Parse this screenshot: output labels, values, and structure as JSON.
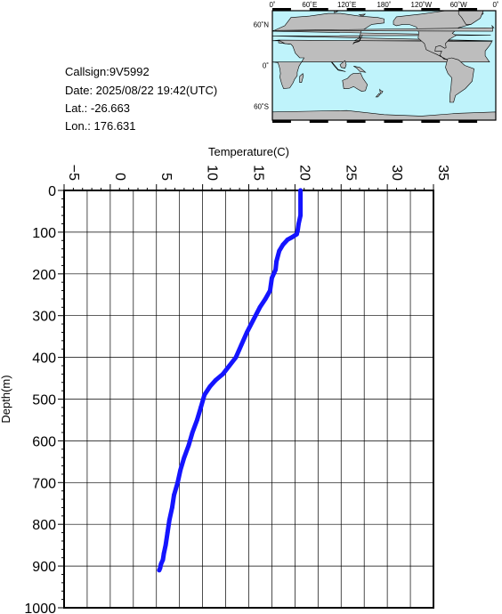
{
  "info": {
    "callsign": "Callsign:9V5992",
    "date": "Date:  2025/08/22 19:42(UTC)",
    "lat": "Lat.:  -26.663",
    "lon": "Lon.:  176.631"
  },
  "map": {
    "top_labels": [
      "0˚",
      "60˚E",
      "120˚E",
      "180˚",
      "120˚W",
      "60˚W",
      "0˚"
    ],
    "side_labels": [
      "60˚N",
      "0˚",
      "60˚S"
    ],
    "ocean_color": "#bff3fb",
    "land_color": "#bdbdbd",
    "marker_color": "#ff0000",
    "marker_icon": "star-icon"
  },
  "chart_data": {
    "type": "line",
    "xlabel": "Temperature(C)",
    "ylabel": "Depth(m)",
    "xlim": [
      -5,
      35
    ],
    "ylim": [
      0,
      1000
    ],
    "y_inverted": true,
    "x_axis_position": "top",
    "grid": true,
    "x_ticks": [
      -5,
      0,
      5,
      10,
      15,
      20,
      25,
      30,
      35
    ],
    "x_tick_labels": [
      "−5",
      "0",
      "5",
      "10",
      "15",
      "20",
      "25",
      "30",
      "35"
    ],
    "y_ticks": [
      0,
      100,
      200,
      300,
      400,
      500,
      600,
      700,
      800,
      900,
      1000
    ],
    "y_tick_labels": [
      "0",
      "100",
      "200",
      "300",
      "400",
      "500",
      "600",
      "700",
      "800",
      "900",
      "1000"
    ],
    "line_color": "#1414ff",
    "series": [
      {
        "x": [
          20.6,
          20.6,
          20.4,
          20.3,
          20.2,
          19.7,
          19.2,
          18.7,
          18.3,
          18.0,
          17.9,
          17.5,
          17.3,
          16.8,
          16.2,
          15.5,
          14.8,
          14.2,
          13.6,
          12.9,
          12.2,
          11.4,
          10.8,
          10.2,
          9.8,
          9.4,
          8.9,
          8.5,
          8.0,
          7.6,
          7.3,
          6.9,
          6.7,
          6.4,
          6.2,
          6.0,
          5.8,
          5.7,
          5.5,
          5.4,
          5.3
        ],
        "y": [
          0,
          60,
          80,
          95,
          105,
          112,
          118,
          130,
          145,
          170,
          190,
          210,
          240,
          260,
          280,
          310,
          340,
          370,
          400,
          420,
          440,
          455,
          470,
          490,
          520,
          550,
          580,
          610,
          640,
          670,
          700,
          730,
          760,
          790,
          820,
          850,
          870,
          885,
          895,
          905,
          910
        ]
      }
    ]
  }
}
